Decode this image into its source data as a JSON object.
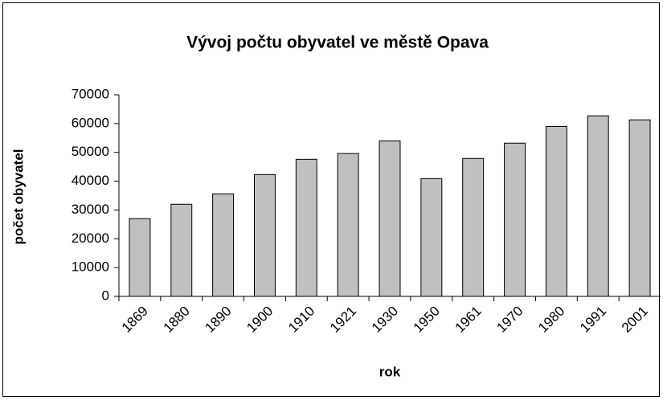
{
  "chart_data": {
    "type": "bar",
    "title": "Vývoj počtu obyvatel ve městě Opava",
    "xlabel": "rok",
    "ylabel": "počet obyvatel",
    "categories": [
      "1869",
      "1880",
      "1890",
      "1900",
      "1910",
      "1921",
      "1930",
      "1950",
      "1961",
      "1970",
      "1980",
      "1991",
      "2001"
    ],
    "values": [
      27000,
      32000,
      35600,
      42300,
      47600,
      49600,
      54000,
      40900,
      47900,
      53200,
      59000,
      62700,
      61300
    ],
    "color": "#c0c0c0",
    "ylim": [
      0,
      70000
    ],
    "yticks": [
      0,
      10000,
      20000,
      30000,
      40000,
      50000,
      60000,
      70000
    ],
    "grid": false
  }
}
